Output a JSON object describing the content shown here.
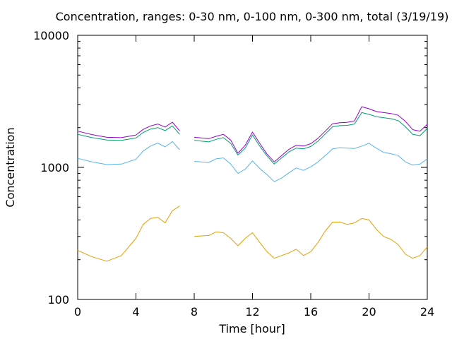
{
  "chart_data": {
    "type": "line",
    "title": "Concentration, ranges: 0-30 nm, 0-100 nm, 0-300 nm, total (3/19/19)",
    "xlabel": "Time [hour]",
    "ylabel": "Concentration",
    "xlim": [
      0,
      24
    ],
    "ylim": [
      100,
      10000
    ],
    "yscale": "log",
    "xticks": [
      0,
      4,
      8,
      12,
      16,
      20,
      24
    ],
    "yticks": [
      100,
      1000,
      10000
    ],
    "grid": false,
    "legend": "none",
    "x": [
      0,
      1,
      2,
      3,
      4,
      4.5,
      5,
      5.5,
      6,
      6.5,
      7,
      7.5,
      8,
      9,
      9.5,
      10,
      10.5,
      11,
      11.5,
      12,
      12.5,
      13,
      13.5,
      14,
      14.5,
      15,
      15.5,
      16,
      16.5,
      17,
      17.5,
      18,
      18.5,
      19,
      19.5,
      20,
      20.5,
      21,
      21.5,
      22,
      22.5,
      23,
      23.5,
      24
    ],
    "series": [
      {
        "color": "#e69f00",
        "values": [
          235,
          210,
          195,
          215,
          290,
          370,
          410,
          420,
          380,
          470,
          510,
          null,
          300,
          305,
          325,
          320,
          290,
          255,
          290,
          320,
          270,
          230,
          205,
          215,
          225,
          240,
          215,
          230,
          270,
          330,
          385,
          385,
          370,
          380,
          410,
          400,
          340,
          300,
          285,
          260,
          220,
          205,
          215,
          250
        ]
      },
      {
        "color": "#56b4e9",
        "values": [
          1170,
          1100,
          1050,
          1060,
          1150,
          1330,
          1450,
          1530,
          1430,
          1570,
          1360,
          null,
          1110,
          1090,
          1160,
          1180,
          1060,
          900,
          970,
          1120,
          980,
          880,
          780,
          830,
          910,
          990,
          950,
          1010,
          1100,
          1230,
          1380,
          1410,
          1400,
          1390,
          1450,
          1520,
          1400,
          1300,
          1270,
          1230,
          1100,
          1040,
          1060,
          1160
        ]
      },
      {
        "color": "#009e73",
        "values": [
          1780,
          1680,
          1610,
          1600,
          1670,
          1840,
          1950,
          2000,
          1900,
          2060,
          1780,
          null,
          1600,
          1560,
          1630,
          1680,
          1520,
          1240,
          1400,
          1760,
          1450,
          1220,
          1060,
          1180,
          1310,
          1400,
          1380,
          1440,
          1580,
          1790,
          2030,
          2070,
          2080,
          2130,
          2600,
          2520,
          2420,
          2380,
          2340,
          2260,
          2030,
          1780,
          1740,
          1970
        ]
      },
      {
        "color": "#9400d3",
        "values": [
          1880,
          1770,
          1690,
          1680,
          1760,
          1940,
          2060,
          2130,
          2020,
          2200,
          1890,
          null,
          1690,
          1650,
          1720,
          1780,
          1610,
          1280,
          1470,
          1850,
          1520,
          1260,
          1100,
          1230,
          1370,
          1470,
          1450,
          1510,
          1660,
          1880,
          2140,
          2180,
          2190,
          2250,
          2880,
          2780,
          2650,
          2600,
          2560,
          2480,
          2230,
          1930,
          1880,
          2120
        ]
      }
    ]
  }
}
